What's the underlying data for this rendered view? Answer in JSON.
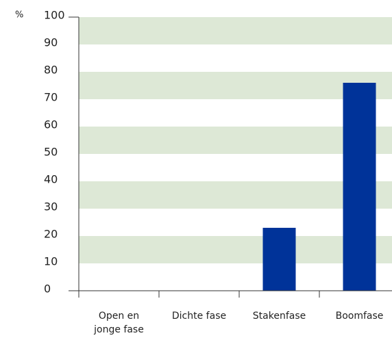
{
  "chart_data": {
    "type": "bar",
    "y_unit": "%",
    "categories": [
      "Open en\njonge fase",
      "Dichte fase",
      "Stakenfase",
      "Boomfase"
    ],
    "values": [
      0,
      0,
      23,
      76
    ],
    "color": "#003399",
    "ylim": [
      0,
      100
    ],
    "yticks": [
      0,
      10,
      20,
      30,
      40,
      50,
      60,
      70,
      80,
      90,
      100
    ],
    "grid": "bands",
    "grid_color": "#dde8d6"
  }
}
